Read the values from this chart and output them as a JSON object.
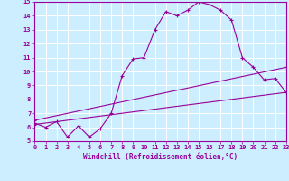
{
  "xlabel": "Windchill (Refroidissement éolien,°C)",
  "bg_color": "#cceeff",
  "line_color": "#990099",
  "xlim": [
    0,
    23
  ],
  "ylim": [
    5,
    15
  ],
  "xticks": [
    0,
    1,
    2,
    3,
    4,
    5,
    6,
    7,
    8,
    9,
    10,
    11,
    12,
    13,
    14,
    15,
    16,
    17,
    18,
    19,
    20,
    21,
    22,
    23
  ],
  "yticks": [
    5,
    6,
    7,
    8,
    9,
    10,
    11,
    12,
    13,
    14,
    15
  ],
  "curve1_x": [
    0,
    1,
    2,
    3,
    4,
    5,
    6,
    7,
    8,
    9,
    10,
    11,
    12,
    13,
    14,
    15,
    16,
    17,
    18,
    19,
    20,
    21,
    22,
    23
  ],
  "curve1_y": [
    6.3,
    6.0,
    6.4,
    5.3,
    6.1,
    5.3,
    5.9,
    7.0,
    9.7,
    10.9,
    11.0,
    13.0,
    14.3,
    14.0,
    14.4,
    15.0,
    14.8,
    14.4,
    13.7,
    11.0,
    10.3,
    9.4,
    9.5,
    8.5
  ],
  "curve2_x": [
    0,
    23
  ],
  "curve2_y": [
    6.5,
    10.3
  ],
  "curve3_x": [
    0,
    23
  ],
  "curve3_y": [
    6.2,
    8.5
  ]
}
